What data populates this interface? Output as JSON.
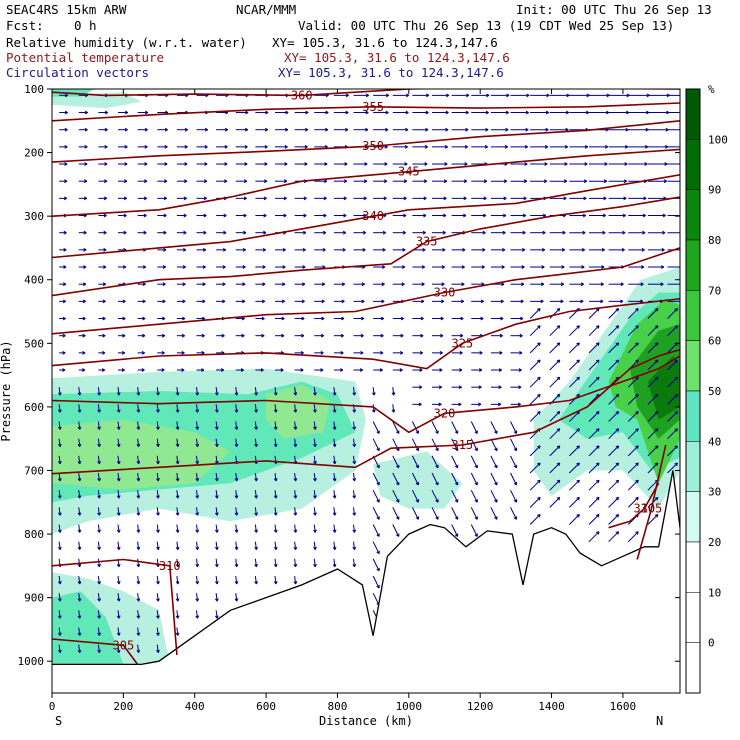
{
  "header": {
    "model": "SEAC4RS 15km ARW",
    "org": "NCAR/MMM",
    "init": "Init: 00 UTC Thu 26 Sep 13",
    "fcst_label": "Fcst:",
    "fcst_value": "0 h",
    "valid": "Valid: 00 UTC Thu 26 Sep 13 (19 CDT Wed 25 Sep 13)",
    "fields": [
      {
        "name": "Relative humidity (w.r.t. water)",
        "xy": "XY= 105.3, 31.6 to 124.3,147.6"
      },
      {
        "name": "Potential temperature",
        "xy": "XY= 105.3, 31.6 to 124.3,147.6"
      },
      {
        "name": "Circulation vectors",
        "xy": "XY= 105.3, 31.6 to 124.3,147.6"
      }
    ]
  },
  "colors": {
    "theta": "#800000",
    "vectors": "#00008b",
    "rh_bands": [
      "#ffffff",
      "#b8f0e0",
      "#60e8b8",
      "#90e890",
      "#48d048",
      "#20a020",
      "#0a7a0a",
      "#006000"
    ]
  },
  "chart_data": {
    "type": "cross-section",
    "xlabel": "Distance (km)",
    "ylabel": "Pressure (hPa)",
    "xlim": [
      0,
      1760
    ],
    "ylim": [
      1050,
      100
    ],
    "xticks": [
      "0",
      "200",
      "400",
      "600",
      "800",
      "1000",
      "1200",
      "1400",
      "1600"
    ],
    "yticks": [
      "100",
      "200",
      "300",
      "400",
      "500",
      "600",
      "700",
      "800",
      "900",
      "1000"
    ],
    "x_end_labels": {
      "left": "S",
      "right": "N"
    },
    "colorbar": {
      "unit": "%",
      "ticks": [
        "100",
        "90",
        "80",
        "70",
        "60",
        "50",
        "40",
        "30",
        "20",
        "10",
        "0"
      ]
    },
    "theta_contours": [
      {
        "label": "360",
        "points": [
          [
            0,
            105
          ],
          [
            150,
            110
          ],
          [
            400,
            108
          ],
          [
            700,
            110
          ],
          [
            1000,
            100
          ],
          [
            1200,
            98
          ],
          [
            1760,
            100
          ]
        ]
      },
      {
        "label": "355",
        "points": [
          [
            0,
            150
          ],
          [
            300,
            140
          ],
          [
            600,
            132
          ],
          [
            900,
            128
          ],
          [
            1200,
            130
          ],
          [
            1500,
            128
          ],
          [
            1760,
            122
          ]
        ]
      },
      {
        "label": "350",
        "points": [
          [
            0,
            215
          ],
          [
            300,
            205
          ],
          [
            600,
            198
          ],
          [
            900,
            190
          ],
          [
            1200,
            175
          ],
          [
            1500,
            165
          ],
          [
            1760,
            150
          ]
        ]
      },
      {
        "label": "345",
        "points": [
          [
            0,
            300
          ],
          [
            300,
            290
          ],
          [
            500,
            270
          ],
          [
            700,
            245
          ],
          [
            1000,
            230
          ],
          [
            1300,
            215
          ],
          [
            1500,
            205
          ],
          [
            1760,
            195
          ]
        ]
      },
      {
        "label": "340",
        "points": [
          [
            0,
            365
          ],
          [
            300,
            350
          ],
          [
            500,
            340
          ],
          [
            700,
            320
          ],
          [
            900,
            300
          ],
          [
            1000,
            290
          ],
          [
            1300,
            280
          ],
          [
            1500,
            260
          ],
          [
            1760,
            235
          ]
        ]
      },
      {
        "label": "335",
        "points": [
          [
            0,
            425
          ],
          [
            300,
            400
          ],
          [
            500,
            395
          ],
          [
            700,
            385
          ],
          [
            950,
            375
          ],
          [
            1050,
            340
          ],
          [
            1200,
            320
          ],
          [
            1400,
            300
          ],
          [
            1600,
            285
          ],
          [
            1760,
            270
          ]
        ]
      },
      {
        "label": "330",
        "points": [
          [
            0,
            485
          ],
          [
            300,
            470
          ],
          [
            600,
            455
          ],
          [
            850,
            450
          ],
          [
            1100,
            420
          ],
          [
            1300,
            400
          ],
          [
            1450,
            390
          ],
          [
            1600,
            380
          ],
          [
            1760,
            350
          ]
        ]
      },
      {
        "label": "325",
        "points": [
          [
            0,
            535
          ],
          [
            300,
            520
          ],
          [
            600,
            515
          ],
          [
            900,
            525
          ],
          [
            1050,
            540
          ],
          [
            1150,
            500
          ],
          [
            1300,
            470
          ],
          [
            1450,
            450
          ],
          [
            1600,
            440
          ],
          [
            1760,
            430
          ]
        ]
      },
      {
        "label": "320",
        "points": [
          [
            0,
            590
          ],
          [
            300,
            595
          ],
          [
            600,
            590
          ],
          [
            900,
            600
          ],
          [
            1000,
            640
          ],
          [
            1100,
            610
          ],
          [
            1300,
            600
          ],
          [
            1450,
            590
          ],
          [
            1600,
            560
          ],
          [
            1700,
            540
          ],
          [
            1760,
            520
          ]
        ]
      },
      {
        "label": "315",
        "points": [
          [
            0,
            705
          ],
          [
            300,
            695
          ],
          [
            600,
            685
          ],
          [
            850,
            695
          ],
          [
            950,
            665
          ],
          [
            1150,
            660
          ],
          [
            1350,
            640
          ],
          [
            1500,
            600
          ],
          [
            1620,
            540
          ],
          [
            1700,
            520
          ],
          [
            1760,
            510
          ]
        ]
      },
      {
        "label": "310",
        "points": [
          [
            0,
            850
          ],
          [
            200,
            840
          ],
          [
            330,
            850
          ],
          [
            350,
            990
          ]
        ]
      },
      {
        "label": "305",
        "points": [
          [
            0,
            965
          ],
          [
            200,
            975
          ],
          [
            240,
            1005
          ]
        ]
      },
      {
        "label": "310",
        "points": [
          [
            1560,
            790
          ],
          [
            1620,
            780
          ],
          [
            1660,
            760
          ],
          [
            1700,
            720
          ]
        ]
      },
      {
        "label": "305",
        "points": [
          [
            1640,
            840
          ],
          [
            1680,
            760
          ],
          [
            1720,
            660
          ]
        ]
      }
    ],
    "terrain": [
      [
        0,
        1005
      ],
      [
        250,
        1005
      ],
      [
        300,
        1000
      ],
      [
        400,
        960
      ],
      [
        500,
        920
      ],
      [
        600,
        900
      ],
      [
        700,
        880
      ],
      [
        800,
        855
      ],
      [
        870,
        880
      ],
      [
        900,
        960
      ],
      [
        940,
        835
      ],
      [
        1000,
        800
      ],
      [
        1060,
        785
      ],
      [
        1100,
        790
      ],
      [
        1160,
        820
      ],
      [
        1220,
        795
      ],
      [
        1290,
        800
      ],
      [
        1320,
        880
      ],
      [
        1350,
        800
      ],
      [
        1400,
        790
      ],
      [
        1440,
        800
      ],
      [
        1480,
        830
      ],
      [
        1540,
        850
      ],
      [
        1600,
        835
      ],
      [
        1660,
        820
      ],
      [
        1700,
        820
      ],
      [
        1740,
        700
      ],
      [
        1760,
        790
      ]
    ]
  }
}
